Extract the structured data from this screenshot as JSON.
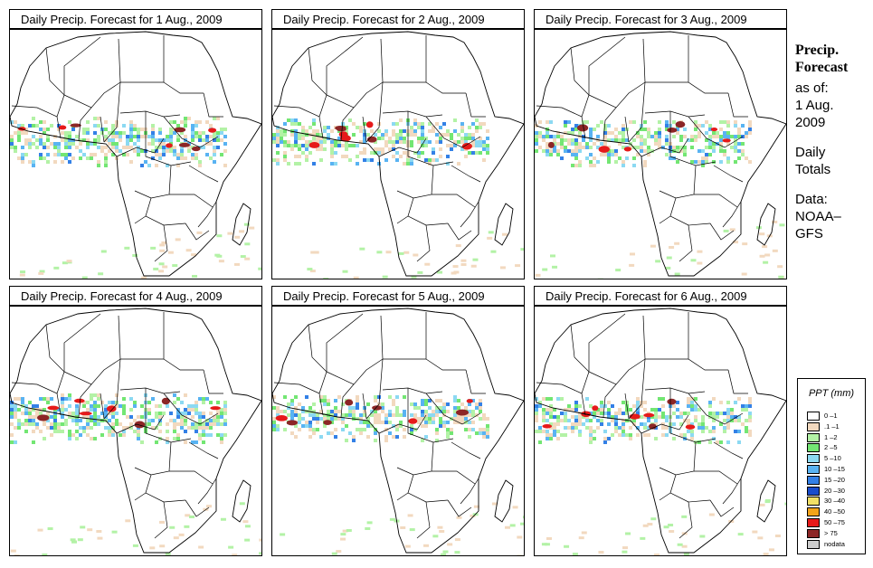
{
  "panels": [
    {
      "title": "Daily Precip. Forecast for  1 Aug., 2009"
    },
    {
      "title": "Daily Precip. Forecast for  2 Aug., 2009"
    },
    {
      "title": "Daily Precip. Forecast for  3 Aug., 2009"
    },
    {
      "title": "Daily Precip. Forecast for  4 Aug., 2009"
    },
    {
      "title": "Daily Precip. Forecast for  5 Aug., 2009"
    },
    {
      "title": "Daily Precip. Forecast for  6 Aug., 2009"
    }
  ],
  "side": {
    "heading1": "Precip.",
    "heading2": "Forecast",
    "asof": "as of:",
    "date1": "1 Aug.",
    "date2": "2009",
    "daily1": "Daily",
    "daily2": "Totals",
    "data1": "Data:",
    "data2": "NOAA–",
    "data3": "GFS"
  },
  "legend": {
    "title": "PPT (mm)",
    "items": [
      {
        "label": "0 –1",
        "color": "#ffffff"
      },
      {
        "label": ".1 –1",
        "color": "#f2d9bf"
      },
      {
        "label": "1 –2",
        "color": "#b3f2a6"
      },
      {
        "label": "2 –5",
        "color": "#73e673"
      },
      {
        "label": "5 –10",
        "color": "#8cd9f2"
      },
      {
        "label": "10 –15",
        "color": "#59b3f2"
      },
      {
        "label": "15 –20",
        "color": "#3380e6"
      },
      {
        "label": "20 –30",
        "color": "#1a4dcc"
      },
      {
        "label": "30 –40",
        "color": "#f2e066"
      },
      {
        "label": "40 –50",
        "color": "#f2a31a"
      },
      {
        "label": "50 –75",
        "color": "#e61a1a"
      },
      {
        "label": "> 75",
        "color": "#8c2626"
      },
      {
        "label": "nodata",
        "color": "#cccccc"
      }
    ]
  }
}
